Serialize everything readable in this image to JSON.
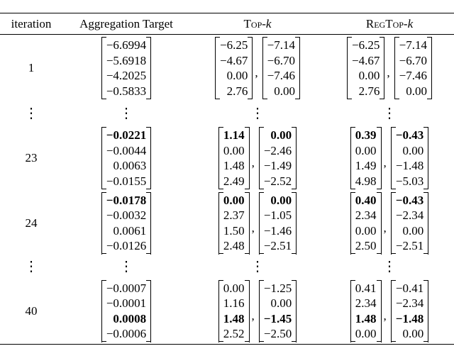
{
  "table": {
    "header": [
      "iteration",
      "Aggregation Target",
      {
        "text": "Top-",
        "var": "k"
      },
      {
        "text": "RegTop-",
        "var": "k"
      }
    ],
    "rows": [
      {
        "iteration": "1",
        "target": {
          "entries": [
            "−6.6994",
            "−5.6918",
            "−4.2025",
            "−0.5833"
          ],
          "bold": []
        },
        "topk": [
          {
            "entries": [
              "−6.25",
              "−4.67",
              "0.00",
              "2.76"
            ],
            "bold": []
          },
          {
            "entries": [
              "−7.14",
              "−6.70",
              "−7.46",
              "0.00"
            ],
            "bold": []
          }
        ],
        "regtopk": [
          {
            "entries": [
              "−6.25",
              "−4.67",
              "0.00",
              "2.76"
            ],
            "bold": []
          },
          {
            "entries": [
              "−7.14",
              "−6.70",
              "−7.46",
              "0.00"
            ],
            "bold": []
          }
        ]
      },
      {
        "iteration": "⋮",
        "target": "⋮",
        "topk": "⋮",
        "regtopk": "⋮"
      },
      {
        "iteration": "23",
        "target": {
          "entries": [
            "−0.0221",
            "−0.0044",
            "0.0063",
            "−0.0155"
          ],
          "bold": [
            0
          ]
        },
        "topk": [
          {
            "entries": [
              "1.14",
              "0.00",
              "1.48",
              "2.49"
            ],
            "bold": [
              0
            ]
          },
          {
            "entries": [
              "0.00",
              "−2.46",
              "−1.49",
              "−2.52"
            ],
            "bold": [
              0
            ]
          }
        ],
        "regtopk": [
          {
            "entries": [
              "0.39",
              "0.00",
              "1.49",
              "4.98"
            ],
            "bold": [
              0
            ]
          },
          {
            "entries": [
              "−0.43",
              "0.00",
              "−1.48",
              "−5.03"
            ],
            "bold": [
              0
            ]
          }
        ]
      },
      {
        "iteration": "24",
        "target": {
          "entries": [
            "−0.0178",
            "−0.0032",
            "0.0061",
            "−0.0126"
          ],
          "bold": [
            0
          ]
        },
        "topk": [
          {
            "entries": [
              "0.00",
              "2.37",
              "1.50",
              "2.48"
            ],
            "bold": [
              0
            ]
          },
          {
            "entries": [
              "0.00",
              "−1.05",
              "−1.46",
              "−2.51"
            ],
            "bold": [
              0
            ]
          }
        ],
        "regtopk": [
          {
            "entries": [
              "0.40",
              "2.34",
              "0.00",
              "2.50"
            ],
            "bold": [
              0
            ]
          },
          {
            "entries": [
              "−0.43",
              "−2.34",
              "0.00",
              "−2.51"
            ],
            "bold": [
              0
            ]
          }
        ]
      },
      {
        "iteration": "⋮",
        "target": "⋮",
        "topk": "⋮",
        "regtopk": "⋮"
      },
      {
        "iteration": "40",
        "target": {
          "entries": [
            "−0.0007",
            "−0.0001",
            "0.0008",
            "−0.0006"
          ],
          "bold": [
            2
          ]
        },
        "topk": [
          {
            "entries": [
              "0.00",
              "1.16",
              "1.48",
              "2.52"
            ],
            "bold": [
              2
            ]
          },
          {
            "entries": [
              "−1.25",
              "0.00",
              "−1.45",
              "−2.50"
            ],
            "bold": [
              2
            ]
          }
        ],
        "regtopk": [
          {
            "entries": [
              "0.41",
              "2.34",
              "1.48",
              "0.00"
            ],
            "bold": [
              2
            ]
          },
          {
            "entries": [
              "−0.41",
              "−2.34",
              "−1.48",
              "0.00"
            ],
            "bold": [
              2
            ]
          }
        ]
      }
    ]
  }
}
